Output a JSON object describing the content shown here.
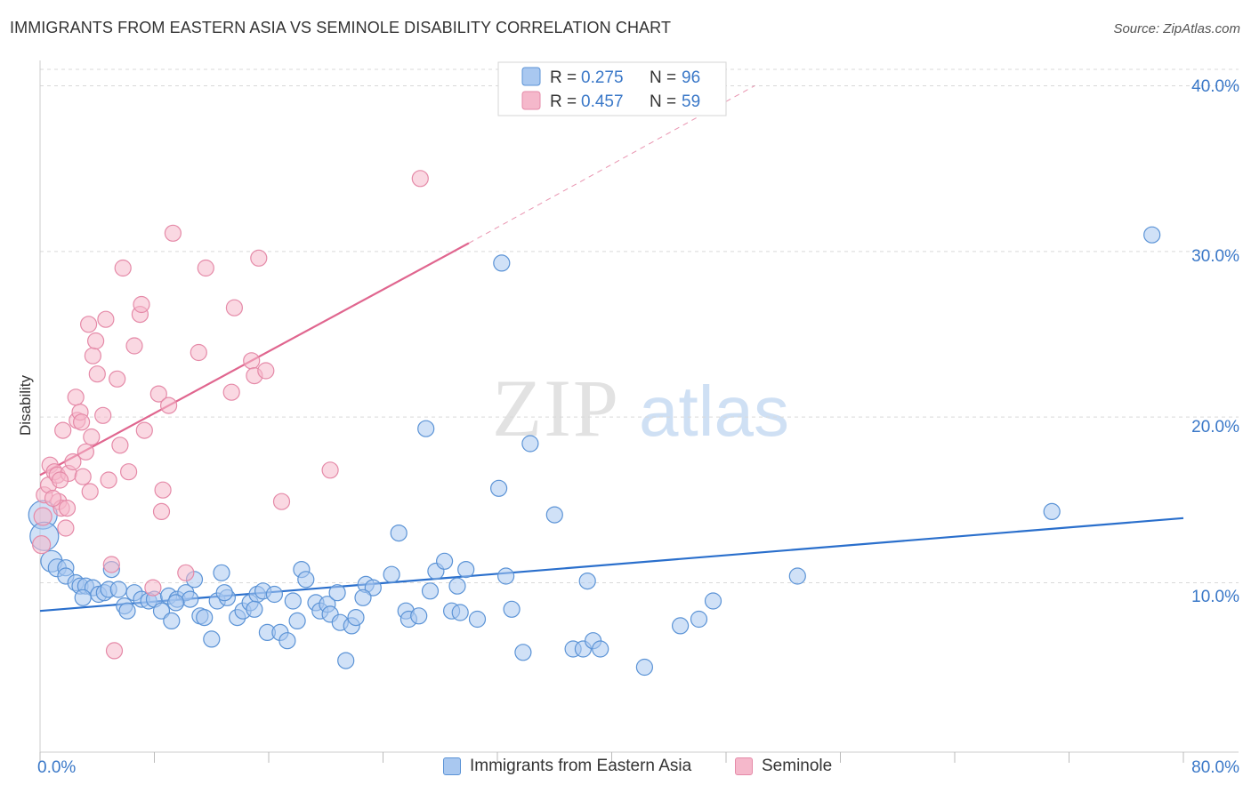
{
  "title": "IMMIGRANTS FROM EASTERN ASIA VS SEMINOLE DISABILITY CORRELATION CHART",
  "source": "Source: ZipAtlas.com",
  "watermark": {
    "zip": "ZIP",
    "atlas": "atlas"
  },
  "colors": {
    "blue_fill": "#a9c8f0",
    "blue_stroke": "#5b93d6",
    "blue_line": "#2a6fcc",
    "pink_fill": "#f5b8cb",
    "pink_stroke": "#e58aa8",
    "pink_line": "#e0668f",
    "axis_text": "#3a78c8",
    "grid": "#d9d9d9"
  },
  "legend": {
    "rows": [
      {
        "r_label": "R =",
        "r_value": "0.275",
        "n_label": "N =",
        "n_value": "96"
      },
      {
        "r_label": "R =",
        "r_value": "0.457",
        "n_label": "N =",
        "n_value": "59"
      }
    ]
  },
  "chart_data": {
    "type": "scatter",
    "title": "IMMIGRANTS FROM EASTERN ASIA VS SEMINOLE DISABILITY CORRELATION CHART",
    "xlabel": "",
    "ylabel": "Disability",
    "xlim": [
      0,
      80
    ],
    "ylim": [
      0,
      42
    ],
    "x_tick_labels": [
      "0.0%",
      "80.0%"
    ],
    "y_ticks": [
      10,
      20,
      30,
      40
    ],
    "y_tick_labels": [
      "10.0%",
      "20.0%",
      "30.0%",
      "40.0%"
    ],
    "grid": "horizontal dashed",
    "legend_position": "top-center",
    "series": [
      {
        "name": "Immigrants from Eastern Asia",
        "color": "#a9c8f0",
        "trend": {
          "x": [
            0,
            80
          ],
          "y": [
            8.3,
            13.9
          ],
          "style": "solid"
        },
        "points": [
          [
            0.2,
            14.1,
            16
          ],
          [
            0.3,
            12.8,
            16
          ],
          [
            0.8,
            11.3,
            12
          ],
          [
            1.2,
            10.9,
            10
          ],
          [
            1.8,
            10.9,
            9
          ],
          [
            1.8,
            10.4,
            9
          ],
          [
            2.5,
            10.0,
            9
          ],
          [
            2.8,
            9.8,
            9
          ],
          [
            3.2,
            9.8,
            9
          ],
          [
            3.7,
            9.7,
            9
          ],
          [
            4.1,
            9.3,
            9
          ],
          [
            4.5,
            9.4,
            9
          ],
          [
            4.8,
            9.6,
            9
          ],
          [
            5.5,
            9.6,
            9
          ],
          [
            5.9,
            8.6,
            9
          ],
          [
            6.1,
            8.3,
            9
          ],
          [
            6.6,
            9.4,
            9
          ],
          [
            7.1,
            9.0,
            9
          ],
          [
            7.6,
            8.9,
            9
          ],
          [
            8.0,
            9.0,
            9
          ],
          [
            8.5,
            8.3,
            9
          ],
          [
            9.0,
            9.2,
            9
          ],
          [
            9.2,
            7.7,
            9
          ],
          [
            9.6,
            9.0,
            9
          ],
          [
            10.2,
            9.4,
            9
          ],
          [
            10.5,
            9.0,
            9
          ],
          [
            10.8,
            10.2,
            9
          ],
          [
            11.2,
            8.0,
            9
          ],
          [
            11.5,
            7.9,
            9
          ],
          [
            12.0,
            6.6,
            9
          ],
          [
            12.4,
            8.9,
            9
          ],
          [
            12.7,
            10.6,
            9
          ],
          [
            13.1,
            9.1,
            9
          ],
          [
            13.8,
            7.9,
            9
          ],
          [
            14.2,
            8.3,
            9
          ],
          [
            14.7,
            8.8,
            9
          ],
          [
            15.2,
            9.3,
            9
          ],
          [
            15.6,
            9.5,
            9
          ],
          [
            15.9,
            7.0,
            9
          ],
          [
            16.4,
            9.3,
            9
          ],
          [
            16.8,
            7.0,
            9
          ],
          [
            17.3,
            6.5,
            9
          ],
          [
            17.7,
            8.9,
            9
          ],
          [
            18.0,
            7.7,
            9
          ],
          [
            18.3,
            10.8,
            9
          ],
          [
            18.6,
            10.2,
            9
          ],
          [
            19.3,
            8.8,
            9
          ],
          [
            19.6,
            8.3,
            9
          ],
          [
            20.1,
            8.7,
            9
          ],
          [
            20.3,
            8.1,
            9
          ],
          [
            21.0,
            7.6,
            9
          ],
          [
            21.4,
            5.3,
            9
          ],
          [
            21.8,
            7.4,
            9
          ],
          [
            22.1,
            7.9,
            9
          ],
          [
            22.8,
            9.9,
            9
          ],
          [
            23.3,
            9.7,
            9
          ],
          [
            24.6,
            10.5,
            9
          ],
          [
            25.1,
            13.0,
            9
          ],
          [
            25.6,
            8.3,
            9
          ],
          [
            25.8,
            7.8,
            9
          ],
          [
            27.0,
            19.3,
            9
          ],
          [
            27.3,
            9.5,
            9
          ],
          [
            27.7,
            10.7,
            9
          ],
          [
            28.3,
            11.3,
            9
          ],
          [
            28.8,
            8.3,
            9
          ],
          [
            29.2,
            9.8,
            9
          ],
          [
            29.4,
            8.2,
            9
          ],
          [
            29.8,
            10.8,
            9
          ],
          [
            30.6,
            7.8,
            9
          ],
          [
            32.1,
            15.7,
            9
          ],
          [
            32.3,
            29.3,
            9
          ],
          [
            32.6,
            10.4,
            9
          ],
          [
            33.0,
            8.4,
            9
          ],
          [
            33.8,
            5.8,
            9
          ],
          [
            34.3,
            18.4,
            9
          ],
          [
            36.0,
            14.1,
            9
          ],
          [
            37.3,
            6.0,
            9
          ],
          [
            38.0,
            6.0,
            9
          ],
          [
            38.3,
            10.1,
            9
          ],
          [
            38.7,
            6.5,
            9
          ],
          [
            39.2,
            6.0,
            9
          ],
          [
            42.3,
            4.9,
            9
          ],
          [
            44.8,
            7.4,
            9
          ],
          [
            46.1,
            7.8,
            9
          ],
          [
            47.1,
            8.9,
            9
          ],
          [
            53.0,
            10.4,
            9
          ],
          [
            70.8,
            14.3,
            9
          ],
          [
            77.8,
            31.0,
            9
          ],
          [
            15.0,
            8.4,
            9
          ],
          [
            9.5,
            8.8,
            9
          ],
          [
            3.0,
            9.1,
            9
          ],
          [
            26.5,
            8.0,
            9
          ],
          [
            22.6,
            9.1,
            9
          ],
          [
            20.8,
            9.4,
            9
          ],
          [
            12.9,
            9.4,
            9
          ],
          [
            5.0,
            10.8,
            9
          ]
        ]
      },
      {
        "name": "Seminole",
        "color": "#f5b8cb",
        "trend": {
          "x": [
            0,
            30
          ],
          "y": [
            16.5,
            30.5
          ],
          "style": "solid",
          "extended_to": [
            50,
            40.0
          ],
          "extended_style": "dashed"
        },
        "points": [
          [
            0.1,
            12.3,
            10
          ],
          [
            0.2,
            14.0,
            10
          ],
          [
            0.3,
            15.3,
            9
          ],
          [
            0.6,
            15.9,
            9
          ],
          [
            0.7,
            17.1,
            9
          ],
          [
            1.0,
            16.7,
            9
          ],
          [
            1.2,
            16.5,
            9
          ],
          [
            1.3,
            14.9,
            9
          ],
          [
            1.5,
            14.5,
            9
          ],
          [
            1.6,
            19.2,
            9
          ],
          [
            1.8,
            13.3,
            9
          ],
          [
            1.9,
            14.5,
            9
          ],
          [
            2.0,
            16.6,
            9
          ],
          [
            2.3,
            17.3,
            9
          ],
          [
            2.5,
            21.2,
            9
          ],
          [
            2.6,
            19.8,
            9
          ],
          [
            2.8,
            20.3,
            9
          ],
          [
            2.9,
            19.7,
            9
          ],
          [
            3.0,
            16.4,
            9
          ],
          [
            3.2,
            17.9,
            9
          ],
          [
            3.4,
            25.6,
            9
          ],
          [
            3.5,
            15.5,
            9
          ],
          [
            3.6,
            18.8,
            9
          ],
          [
            3.7,
            23.7,
            9
          ],
          [
            3.9,
            24.6,
            9
          ],
          [
            4.0,
            22.6,
            9
          ],
          [
            4.4,
            20.1,
            9
          ],
          [
            4.6,
            25.9,
            9
          ],
          [
            4.8,
            16.2,
            9
          ],
          [
            5.0,
            11.1,
            9
          ],
          [
            5.2,
            5.9,
            9
          ],
          [
            5.4,
            22.3,
            9
          ],
          [
            5.6,
            18.3,
            9
          ],
          [
            5.8,
            29.0,
            9
          ],
          [
            6.2,
            16.7,
            9
          ],
          [
            6.6,
            24.3,
            9
          ],
          [
            7.0,
            26.2,
            9
          ],
          [
            7.1,
            26.8,
            9
          ],
          [
            7.3,
            19.2,
            9
          ],
          [
            7.9,
            9.7,
            9
          ],
          [
            8.3,
            21.4,
            9
          ],
          [
            8.5,
            14.3,
            9
          ],
          [
            8.6,
            15.6,
            9
          ],
          [
            9.0,
            20.7,
            9
          ],
          [
            9.3,
            31.1,
            9
          ],
          [
            10.2,
            10.6,
            9
          ],
          [
            11.1,
            23.9,
            9
          ],
          [
            11.6,
            29.0,
            9
          ],
          [
            13.4,
            21.5,
            9
          ],
          [
            13.6,
            26.6,
            9
          ],
          [
            14.8,
            23.4,
            9
          ],
          [
            15.0,
            22.5,
            9
          ],
          [
            15.3,
            29.6,
            9
          ],
          [
            15.8,
            22.8,
            9
          ],
          [
            16.9,
            14.9,
            9
          ],
          [
            20.3,
            16.8,
            9
          ],
          [
            26.6,
            34.4,
            9
          ],
          [
            1.4,
            16.2,
            9
          ],
          [
            0.9,
            15.1,
            9
          ]
        ]
      }
    ]
  },
  "bottom_legend": [
    "Immigrants from Eastern Asia",
    "Seminole"
  ]
}
